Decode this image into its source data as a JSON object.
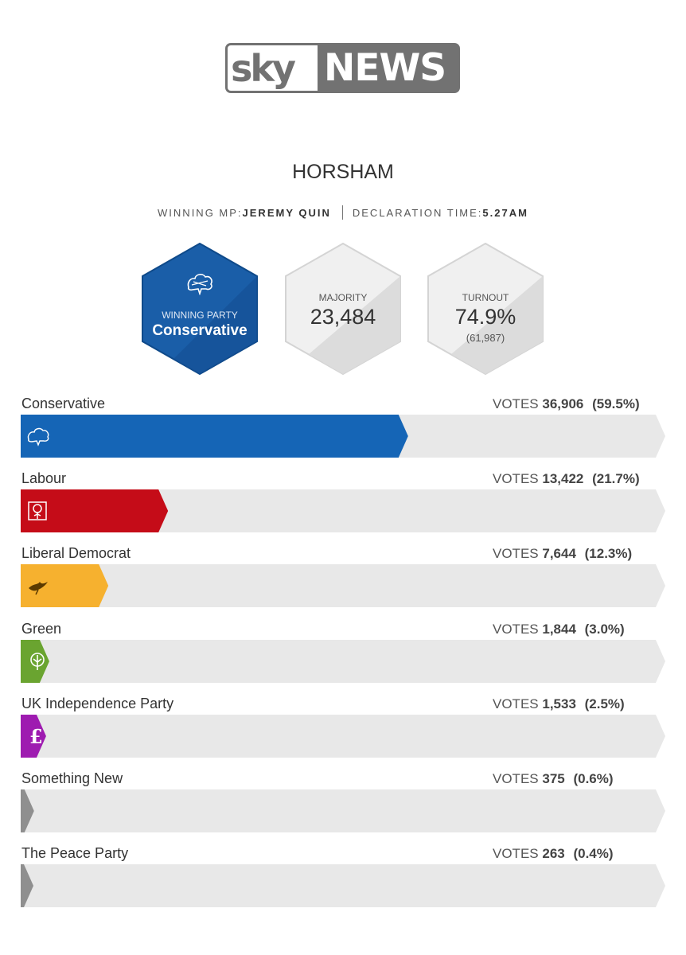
{
  "logo": {
    "sky": "sky",
    "news": "NEWS"
  },
  "constituency": "HORSHAM",
  "meta": {
    "mp_label": "WINNING MP:",
    "mp_value": "JEREMY QUIN",
    "time_label": "DECLARATION TIME:",
    "time_value": "5.27AM"
  },
  "stats": {
    "winning_party_label": "WINNING PARTY",
    "winning_party": "Conservative",
    "majority_label": "MAJORITY",
    "majority": "23,484",
    "turnout_label": "TURNOUT",
    "turnout": "74.9%",
    "turnout_votes": "(61,987)"
  },
  "votes_label": "VOTES",
  "colors": {
    "conservative": "#1565b6",
    "labour": "#c50c18",
    "libdem": "#f6b12f",
    "green": "#6aa430",
    "ukip": "#9e1bb0",
    "other": "#8f8f8f",
    "track": "#e8e8e8"
  },
  "chart_data": {
    "type": "bar",
    "categories": [
      "Conservative",
      "Labour",
      "Liberal Democrat",
      "Green",
      "UK Independence Party",
      "Something New",
      "The Peace Party"
    ],
    "series": [
      {
        "name": "VOTES",
        "values": [
          36906,
          13422,
          7644,
          1844,
          1533,
          375,
          263
        ]
      }
    ],
    "vote_labels": [
      "36,906",
      "13,422",
      "7,644",
      "1,844",
      "1,533",
      "375",
      "263"
    ],
    "percent_labels": [
      "(59.5%)",
      "(21.7%)",
      "(12.3%)",
      "(3.0%)",
      "(2.5%)",
      "(0.6%)",
      "(0.4%)"
    ],
    "percents": [
      59.5,
      21.7,
      12.3,
      3.0,
      2.5,
      0.6,
      0.4
    ],
    "xlim": [
      0,
      100
    ],
    "bar_colors": [
      "#1565b6",
      "#c50c18",
      "#f6b12f",
      "#6aa430",
      "#9e1bb0",
      "#8f8f8f",
      "#8f8f8f"
    ],
    "icons": [
      "conservative-tree-icon",
      "labour-rose-icon",
      "libdem-bird-icon",
      "green-tree-icon",
      "ukip-pound-icon",
      "",
      ""
    ]
  }
}
